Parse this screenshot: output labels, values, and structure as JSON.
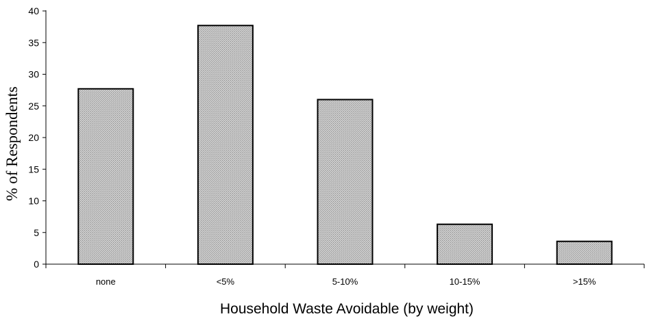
{
  "chart_data": {
    "type": "bar",
    "title": "",
    "xlabel": "Household Waste Avoidable (by weight)",
    "ylabel": "% of Respondents",
    "categories": [
      "none",
      "<5%",
      "5-10%",
      "10-15%",
      ">15%"
    ],
    "values": [
      27.7,
      37.7,
      26.0,
      6.3,
      3.6
    ],
    "ylim": [
      0,
      40
    ],
    "yticks": [
      0,
      5,
      10,
      15,
      20,
      25,
      30,
      35,
      40
    ],
    "grid": false,
    "legend": "none",
    "bar_color": "#c8c8c8",
    "bar_edge_color": "#000000"
  }
}
